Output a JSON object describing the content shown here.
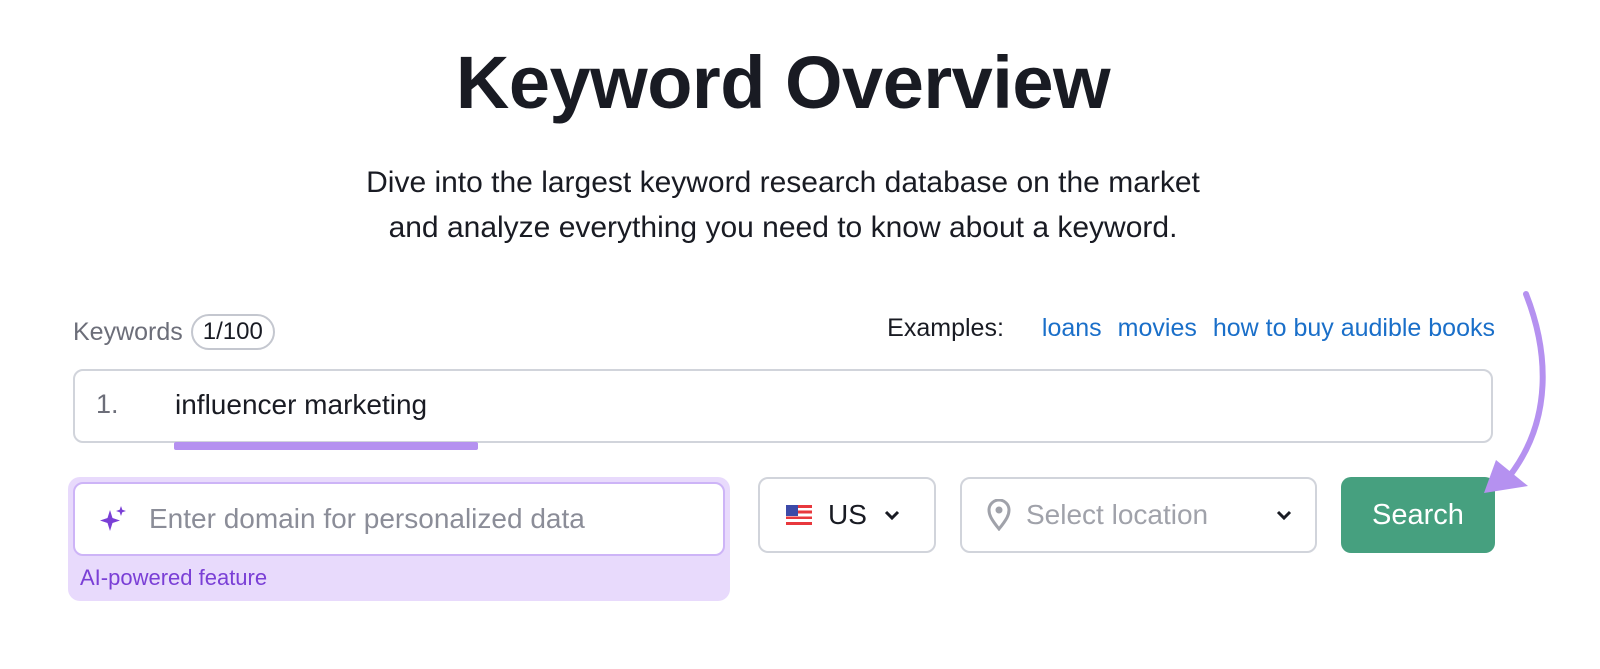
{
  "header": {
    "title": "Keyword Overview",
    "subtitle_line1": "Dive into the largest keyword research database on the market",
    "subtitle_line2": "and analyze everything you need to know about a keyword."
  },
  "keywords": {
    "label": "Keywords",
    "count": "1/100",
    "row_number": "1.",
    "value": "influencer marketing"
  },
  "examples": {
    "label": "Examples:",
    "links": [
      "loans",
      "movies",
      "how to buy audible books"
    ]
  },
  "domain": {
    "placeholder": "Enter domain for personalized data",
    "ai_label": "AI-powered feature",
    "icon": "sparkle-icon"
  },
  "country": {
    "value": "US",
    "icon": "us-flag-icon"
  },
  "location": {
    "placeholder": "Select location",
    "icon": "map-pin-icon"
  },
  "search_button": "Search",
  "colors": {
    "accent": "#46a07f",
    "link": "#1a6fc9",
    "ai_purple": "#7a3fd6",
    "highlight": "#b591f0"
  }
}
